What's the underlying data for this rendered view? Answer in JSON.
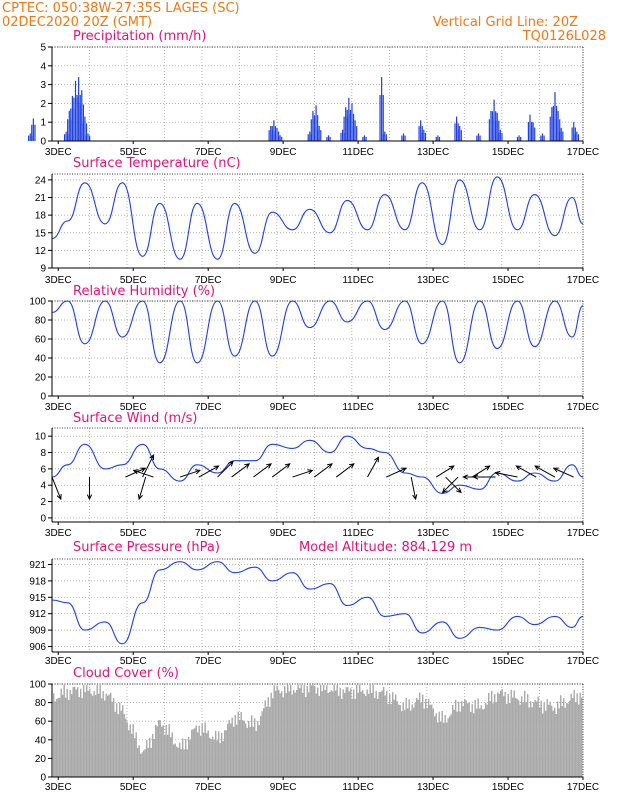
{
  "header": {
    "station": "CPTEC:   050:38W-27:35S   LAGES (SC)",
    "datetime": "02DEC2020 20Z (GMT)",
    "grid_note": "Vertical Grid Line: 20Z",
    "code": "TQ0126L028"
  },
  "x_ticks": [
    "3DEC",
    "5DEC",
    "7DEC",
    "9DEC",
    "11DEC",
    "13DEC",
    "15DEC",
    "17DEC"
  ],
  "altitude_label": "Model Altitude: 884.129 m",
  "colors": {
    "header": "#f07818",
    "title": "#e0147a",
    "series": "#1f3fe0",
    "cloud": "#a9a9a9",
    "wind": "#000000"
  },
  "chart_data": [
    {
      "type": "bar",
      "title": "Precipitation (mm/h)",
      "ylim": [
        0,
        5
      ],
      "yticks": [
        0,
        1,
        2,
        3,
        4,
        5
      ],
      "x_range": [
        "02DEC2020 20Z",
        "17DEC2020 00Z"
      ],
      "bars": [
        {
          "x": "02DEC 06Z",
          "y": 0.4
        },
        {
          "x": "02DEC 08Z",
          "y": 1.2
        },
        {
          "x": "03DEC 05Z",
          "y": 0.5
        },
        {
          "x": "03DEC 07Z",
          "y": 1.6
        },
        {
          "x": "03DEC 09Z",
          "y": 2.4
        },
        {
          "x": "03DEC 11Z",
          "y": 3.2
        },
        {
          "x": "03DEC 13Z",
          "y": 3.4
        },
        {
          "x": "03DEC 15Z",
          "y": 2.7
        },
        {
          "x": "03DEC 17Z",
          "y": 1.3
        },
        {
          "x": "03DEC 19Z",
          "y": 0.4
        },
        {
          "x": "08DEC 16Z",
          "y": 0.8
        },
        {
          "x": "08DEC 18Z",
          "y": 1.1
        },
        {
          "x": "08DEC 20Z",
          "y": 0.7
        },
        {
          "x": "08DEC 22Z",
          "y": 0.3
        },
        {
          "x": "09DEC 17Z",
          "y": 0.5
        },
        {
          "x": "09DEC 19Z",
          "y": 1.6
        },
        {
          "x": "09DEC 21Z",
          "y": 1.9
        },
        {
          "x": "09DEC 23Z",
          "y": 0.8
        },
        {
          "x": "10DEC 05Z",
          "y": 0.3
        },
        {
          "x": "10DEC 14Z",
          "y": 0.6
        },
        {
          "x": "10DEC 16Z",
          "y": 1.8
        },
        {
          "x": "10DEC 18Z",
          "y": 2.3
        },
        {
          "x": "10DEC 20Z",
          "y": 2.0
        },
        {
          "x": "10DEC 22Z",
          "y": 1.1
        },
        {
          "x": "11DEC 04Z",
          "y": 0.3
        },
        {
          "x": "11DEC 15Z",
          "y": 3.4
        },
        {
          "x": "11DEC 17Z",
          "y": 0.5
        },
        {
          "x": "12DEC 05Z",
          "y": 0.4
        },
        {
          "x": "12DEC 16Z",
          "y": 1.1
        },
        {
          "x": "12DEC 18Z",
          "y": 0.6
        },
        {
          "x": "13DEC 03Z",
          "y": 0.3
        },
        {
          "x": "13DEC 15Z",
          "y": 1.3
        },
        {
          "x": "13DEC 17Z",
          "y": 0.8
        },
        {
          "x": "14DEC 05Z",
          "y": 0.4
        },
        {
          "x": "14DEC 13Z",
          "y": 1.6
        },
        {
          "x": "14DEC 15Z",
          "y": 2.2
        },
        {
          "x": "14DEC 17Z",
          "y": 1.5
        },
        {
          "x": "14DEC 19Z",
          "y": 0.6
        },
        {
          "x": "15DEC 07Z",
          "y": 0.3
        },
        {
          "x": "15DEC 14Z",
          "y": 1.4
        },
        {
          "x": "15DEC 16Z",
          "y": 1.0
        },
        {
          "x": "15DEC 22Z",
          "y": 0.4
        },
        {
          "x": "16DEC 04Z",
          "y": 1.8
        },
        {
          "x": "16DEC 06Z",
          "y": 2.6
        },
        {
          "x": "16DEC 08Z",
          "y": 1.6
        },
        {
          "x": "16DEC 10Z",
          "y": 0.7
        },
        {
          "x": "16DEC 18Z",
          "y": 1.0
        },
        {
          "x": "16DEC 20Z",
          "y": 0.5
        }
      ]
    },
    {
      "type": "line",
      "title": "Surface Temperature (nC)",
      "ylim": [
        9,
        25
      ],
      "yticks": [
        9,
        12,
        15,
        18,
        21,
        24
      ],
      "x": [
        "02DEC 20Z",
        "03DEC 06Z",
        "03DEC 17Z",
        "04DEC 06Z",
        "04DEC 17Z",
        "05DEC 06Z",
        "05DEC 17Z",
        "06DEC 06Z",
        "06DEC 17Z",
        "07DEC 06Z",
        "07DEC 17Z",
        "08DEC 06Z",
        "08DEC 17Z",
        "09DEC 06Z",
        "09DEC 17Z",
        "10DEC 06Z",
        "10DEC 17Z",
        "11DEC 06Z",
        "11DEC 17Z",
        "12DEC 06Z",
        "12DEC 17Z",
        "13DEC 06Z",
        "13DEC 17Z",
        "14DEC 06Z",
        "14DEC 17Z",
        "15DEC 06Z",
        "15DEC 17Z",
        "16DEC 06Z",
        "16DEC 17Z",
        "17DEC 00Z"
      ],
      "y": [
        14.0,
        17.0,
        23.5,
        16.5,
        23.5,
        11.0,
        20.0,
        10.5,
        20.0,
        10.5,
        20.0,
        11.5,
        18.5,
        15.5,
        19.0,
        15.0,
        20.5,
        15.5,
        21.5,
        15.5,
        23.5,
        13.0,
        24.0,
        15.5,
        24.5,
        15.5,
        21.5,
        14.5,
        21.0,
        16.5
      ]
    },
    {
      "type": "line",
      "title": "Relative Humidity (%)",
      "ylim": [
        0,
        100
      ],
      "yticks": [
        0,
        20,
        40,
        60,
        80,
        100
      ],
      "x": [
        "02DEC 20Z",
        "03DEC 06Z",
        "03DEC 17Z",
        "04DEC 06Z",
        "04DEC 17Z",
        "05DEC 06Z",
        "05DEC 17Z",
        "06DEC 06Z",
        "06DEC 17Z",
        "07DEC 06Z",
        "07DEC 17Z",
        "08DEC 06Z",
        "08DEC 17Z",
        "09DEC 06Z",
        "09DEC 17Z",
        "10DEC 06Z",
        "10DEC 17Z",
        "11DEC 06Z",
        "11DEC 17Z",
        "12DEC 06Z",
        "12DEC 17Z",
        "13DEC 06Z",
        "13DEC 17Z",
        "14DEC 06Z",
        "14DEC 17Z",
        "15DEC 06Z",
        "15DEC 17Z",
        "16DEC 06Z",
        "16DEC 17Z",
        "17DEC 00Z"
      ],
      "y": [
        88,
        100,
        55,
        100,
        62,
        100,
        35,
        100,
        35,
        100,
        42,
        100,
        42,
        100,
        72,
        100,
        78,
        100,
        70,
        100,
        55,
        100,
        35,
        100,
        50,
        100,
        52,
        100,
        62,
        95
      ]
    },
    {
      "type": "line",
      "title": "Surface Wind (m/s)",
      "ylim": [
        -0.5,
        11
      ],
      "yticks": [
        0,
        2,
        4,
        6,
        8,
        10
      ],
      "x": [
        "02DEC 20Z",
        "03DEC 06Z",
        "03DEC 17Z",
        "04DEC 06Z",
        "04DEC 17Z",
        "05DEC 06Z",
        "05DEC 17Z",
        "06DEC 06Z",
        "06DEC 17Z",
        "07DEC 06Z",
        "07DEC 17Z",
        "08DEC 06Z",
        "08DEC 17Z",
        "09DEC 06Z",
        "09DEC 17Z",
        "10DEC 06Z",
        "10DEC 17Z",
        "11DEC 06Z",
        "11DEC 17Z",
        "12DEC 06Z",
        "12DEC 17Z",
        "13DEC 06Z",
        "13DEC 17Z",
        "14DEC 06Z",
        "14DEC 17Z",
        "15DEC 06Z",
        "15DEC 17Z",
        "16DEC 06Z",
        "16DEC 17Z",
        "17DEC 00Z"
      ],
      "y": [
        5.0,
        6.5,
        9.0,
        6.0,
        6.5,
        9.0,
        6.0,
        4.5,
        6.5,
        5.5,
        7.0,
        7.0,
        9.0,
        8.5,
        9.5,
        8.0,
        10.0,
        8.5,
        8.0,
        5.5,
        5.0,
        3.0,
        4.0,
        3.5,
        5.5,
        4.5,
        5.5,
        4.5,
        6.5,
        5.0
      ],
      "arrows": [
        {
          "x": "02DEC 20Z",
          "u": 0.4,
          "v": -1.0
        },
        {
          "x": "03DEC 20Z",
          "u": 0.0,
          "v": -1.0
        },
        {
          "x": "04DEC 19Z",
          "u": 0.9,
          "v": 0.4
        },
        {
          "x": "05DEC 06Z",
          "u": 0.5,
          "v": 1.0
        },
        {
          "x": "05DEC 08Z",
          "u": -0.3,
          "v": -1.0
        },
        {
          "x": "05DEC 13Z",
          "u": -0.9,
          "v": 0.3
        },
        {
          "x": "06DEC 06Z",
          "u": 0.9,
          "v": 0.3
        },
        {
          "x": "06DEC 18Z",
          "u": 0.9,
          "v": 0.5
        },
        {
          "x": "07DEC 06Z",
          "u": 0.7,
          "v": 0.7
        },
        {
          "x": "07DEC 15Z",
          "u": 0.8,
          "v": 0.6
        },
        {
          "x": "08DEC 05Z",
          "u": 0.8,
          "v": 0.6
        },
        {
          "x": "08DEC 17Z",
          "u": 0.8,
          "v": 0.6
        },
        {
          "x": "09DEC 06Z",
          "u": 0.9,
          "v": 0.3
        },
        {
          "x": "09DEC 20Z",
          "u": 0.8,
          "v": 0.6
        },
        {
          "x": "10DEC 10Z",
          "u": 0.8,
          "v": 0.6
        },
        {
          "x": "11DEC 06Z",
          "u": 0.5,
          "v": 0.9
        },
        {
          "x": "11DEC 18Z",
          "u": 0.9,
          "v": 0.4
        },
        {
          "x": "12DEC 10Z",
          "u": 0.2,
          "v": -1.0
        },
        {
          "x": "13DEC 02Z",
          "u": 0.8,
          "v": 0.5
        },
        {
          "x": "13DEC 08Z",
          "u": 0.7,
          "v": -0.7
        },
        {
          "x": "13DEC 16Z",
          "u": -0.7,
          "v": -0.7
        },
        {
          "x": "14DEC 01Z",
          "u": 0.8,
          "v": 0.5
        },
        {
          "x": "14DEC 08Z",
          "u": -0.9,
          "v": 0.0
        },
        {
          "x": "14DEC 16Z",
          "u": -1.0,
          "v": 0.0
        },
        {
          "x": "15DEC 06Z",
          "u": -1.0,
          "v": 0.2
        },
        {
          "x": "15DEC 18Z",
          "u": -0.9,
          "v": 0.5
        },
        {
          "x": "16DEC 06Z",
          "u": -0.9,
          "v": 0.5
        },
        {
          "x": "16DEC 18Z",
          "u": -0.9,
          "v": 0.4
        }
      ]
    },
    {
      "type": "line",
      "title": "Surface Pressure (hPa)",
      "ylim": [
        905,
        922
      ],
      "yticks": [
        906,
        909,
        912,
        915,
        918,
        921
      ],
      "x": [
        "02DEC 20Z",
        "03DEC 06Z",
        "03DEC 17Z",
        "04DEC 06Z",
        "04DEC 17Z",
        "05DEC 06Z",
        "05DEC 17Z",
        "06DEC 06Z",
        "06DEC 17Z",
        "07DEC 06Z",
        "07DEC 17Z",
        "08DEC 06Z",
        "08DEC 17Z",
        "09DEC 06Z",
        "09DEC 17Z",
        "10DEC 06Z",
        "10DEC 17Z",
        "11DEC 06Z",
        "11DEC 17Z",
        "12DEC 06Z",
        "12DEC 17Z",
        "13DEC 06Z",
        "13DEC 17Z",
        "14DEC 06Z",
        "14DEC 17Z",
        "15DEC 06Z",
        "15DEC 17Z",
        "16DEC 06Z",
        "16DEC 17Z",
        "17DEC 00Z"
      ],
      "y": [
        914.5,
        914.0,
        909.0,
        910.5,
        906.5,
        914.0,
        920.0,
        921.5,
        920.0,
        921.5,
        919.5,
        920.5,
        918.0,
        919.5,
        916.5,
        917.5,
        913.5,
        915.0,
        911.5,
        912.0,
        908.5,
        910.5,
        907.5,
        909.5,
        909.0,
        911.5,
        910.0,
        911.5,
        909.5,
        911.5
      ]
    },
    {
      "type": "bar",
      "title": "Cloud Cover (%)",
      "ylim": [
        0,
        100
      ],
      "yticks": [
        0,
        20,
        40,
        60,
        80,
        100
      ],
      "x": [
        "02DEC 20Z",
        "03DEC 06Z",
        "03DEC 17Z",
        "04DEC 06Z",
        "04DEC 17Z",
        "05DEC 06Z",
        "05DEC 17Z",
        "06DEC 06Z",
        "06DEC 17Z",
        "07DEC 06Z",
        "07DEC 17Z",
        "08DEC 06Z",
        "08DEC 17Z",
        "09DEC 06Z",
        "09DEC 17Z",
        "10DEC 06Z",
        "10DEC 17Z",
        "11DEC 06Z",
        "11DEC 17Z",
        "12DEC 06Z",
        "12DEC 17Z",
        "13DEC 06Z",
        "13DEC 17Z",
        "14DEC 06Z",
        "14DEC 17Z",
        "15DEC 06Z",
        "15DEC 17Z",
        "16DEC 06Z",
        "16DEC 17Z",
        "17DEC 00Z"
      ],
      "y": [
        85,
        92,
        94,
        90,
        70,
        25,
        60,
        30,
        55,
        40,
        65,
        55,
        92,
        95,
        96,
        95,
        92,
        93,
        90,
        75,
        85,
        60,
        80,
        75,
        90,
        85,
        80,
        75,
        85,
        90
      ]
    }
  ]
}
